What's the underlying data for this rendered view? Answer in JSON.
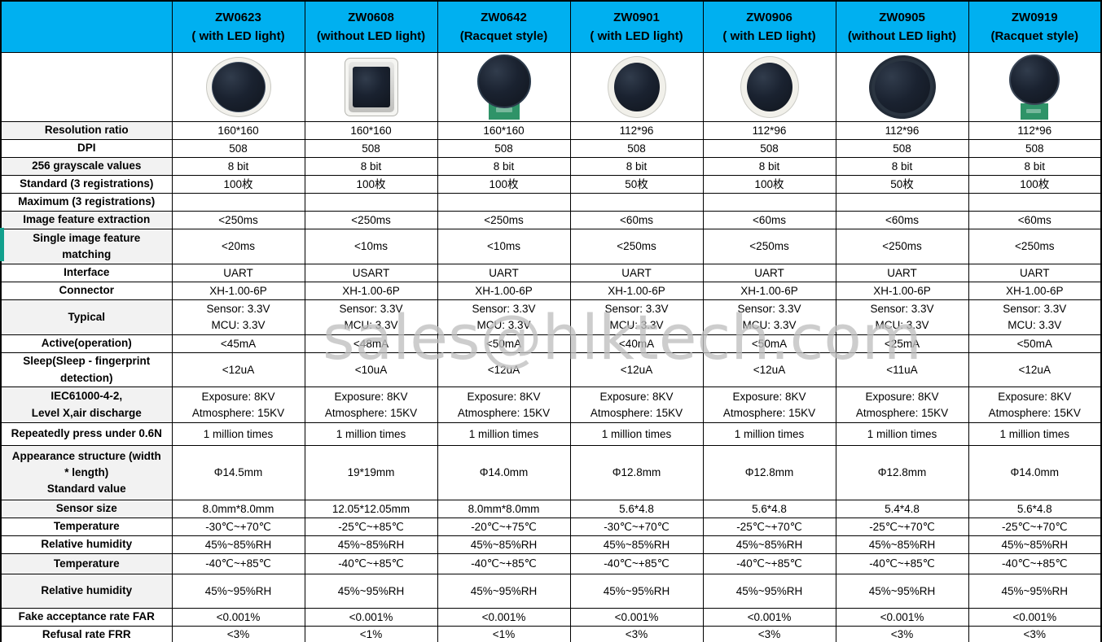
{
  "watermark": "sales@hlktech.com",
  "colors": {
    "header_bg": "#00b0f0",
    "label_shaded_bg": "#f2f2f2",
    "border": "#000000",
    "pcb_green": "#2f9368",
    "sensor_dark": "#10151d"
  },
  "products": [
    {
      "model": "ZW0623",
      "variant": "( with LED light)",
      "image": "sensor-oval-white-bezel"
    },
    {
      "model": "ZW0608",
      "variant": "(without LED light)",
      "image": "sensor-square-silver-frame"
    },
    {
      "model": "ZW0642",
      "variant": "(Racquet style)",
      "image": "sensor-racquet-green-pcb"
    },
    {
      "model": "ZW0901",
      "variant": "( with LED light)",
      "image": "sensor-circle-white-bezel"
    },
    {
      "model": "ZW0906",
      "variant": "( with LED light)",
      "image": "sensor-circle-white-bezel"
    },
    {
      "model": "ZW0905",
      "variant": "(without LED light)",
      "image": "sensor-circle-plain"
    },
    {
      "model": "ZW0919",
      "variant": "(Racquet style)",
      "image": "sensor-racquet-small-green-pcb"
    }
  ],
  "rows": [
    {
      "label": "Resolution ratio",
      "shaded": true,
      "values": [
        "160*160",
        "160*160",
        "160*160",
        "112*96",
        "112*96",
        "112*96",
        "112*96"
      ]
    },
    {
      "label": "DPI",
      "shaded": false,
      "values": [
        "508",
        "508",
        "508",
        "508",
        "508",
        "508",
        "508"
      ]
    },
    {
      "label": "256 grayscale values",
      "shaded": true,
      "values": [
        "8 bit",
        "8 bit",
        "8 bit",
        "8 bit",
        "8 bit",
        "8 bit",
        "8 bit"
      ]
    },
    {
      "label": "Standard (3 registrations)",
      "shaded": false,
      "values": [
        "100枚",
        "100枚",
        "100枚",
        "50枚",
        "100枚",
        "50枚",
        "100枚"
      ]
    },
    {
      "label": "Maximum (3 registrations)",
      "shaded": false,
      "values": [
        "",
        "",
        "",
        "",
        "",
        "",
        ""
      ]
    },
    {
      "label": "Image feature extraction",
      "shaded": true,
      "values": [
        "<250ms",
        "<250ms",
        "<250ms",
        "<60ms",
        "<60ms",
        "<60ms",
        "<60ms"
      ]
    },
    {
      "label": "Single image feature\nmatching",
      "shaded": true,
      "values": [
        "<20ms",
        "<10ms",
        "<10ms",
        "<250ms",
        "<250ms",
        "<250ms",
        "<250ms"
      ]
    },
    {
      "label": "Interface",
      "shaded": false,
      "values": [
        "UART",
        "USART",
        "UART",
        "UART",
        "UART",
        "UART",
        "UART"
      ]
    },
    {
      "label": "Connector",
      "shaded": false,
      "values": [
        "XH-1.00-6P",
        "XH-1.00-6P",
        "XH-1.00-6P",
        "XH-1.00-6P",
        "XH-1.00-6P",
        "XH-1.00-6P",
        "XH-1.00-6P"
      ]
    },
    {
      "label": "Typical",
      "shaded": true,
      "values": [
        "Sensor: 3.3V\nMCU: 3.3V",
        "Sensor: 3.3V\nMCU: 3.3V",
        "Sensor: 3.3V\nMCU: 3.3V",
        "Sensor: 3.3V\nMCU: 3.3V",
        "Sensor: 3.3V\nMCU: 3.3V",
        "Sensor: 3.3V\nMCU: 3.3V",
        "Sensor: 3.3V\nMCU: 3.3V"
      ]
    },
    {
      "label": "Active(operation)",
      "shaded": false,
      "values": [
        "<45mA",
        "<48mA",
        "<50mA",
        "<40mA",
        "<50mA",
        "<25mA",
        "<50mA"
      ]
    },
    {
      "label": "Sleep(Sleep - fingerprint\ndetection)",
      "shaded": false,
      "values": [
        "<12uA",
        "<10uA",
        "<12uA",
        "<12uA",
        "<12uA",
        "<11uA",
        "<12uA"
      ]
    },
    {
      "label": "IEC61000-4-2,\nLevel X,air discharge",
      "shaded": true,
      "values": [
        "Exposure: 8KV\nAtmosphere: 15KV",
        "Exposure: 8KV\nAtmosphere: 15KV",
        "Exposure: 8KV\nAtmosphere: 15KV",
        "Exposure: 8KV\nAtmosphere: 15KV",
        "Exposure: 8KV\nAtmosphere: 15KV",
        "Exposure: 8KV\nAtmosphere: 15KV",
        "Exposure: 8KV\nAtmosphere: 15KV"
      ]
    },
    {
      "label": "Repeatedly press under 0.6N",
      "shaded": false,
      "values": [
        "1 million times",
        "1 million times",
        "1 million times",
        "1 million times",
        "1 million times",
        "1 million times",
        "1 million times"
      ]
    },
    {
      "label": "Appearance structure (width\n* length)\nStandard value",
      "shaded": true,
      "values": [
        "Φ14.5mm",
        "19*19mm",
        "Φ14.0mm",
        "Φ12.8mm",
        "Φ12.8mm",
        "Φ12.8mm",
        "Φ14.0mm"
      ]
    },
    {
      "label": "Sensor size",
      "shaded": true,
      "values": [
        "8.0mm*8.0mm",
        "12.05*12.05mm",
        "8.0mm*8.0mm",
        "5.6*4.8",
        "5.6*4.8",
        "5.4*4.8",
        "5.6*4.8"
      ]
    },
    {
      "label": "Temperature",
      "shaded": false,
      "values": [
        "-30℃~+70℃",
        "-25℃~+85℃",
        "-20℃~+75℃",
        "-30℃~+70℃",
        "-25℃~+70℃",
        "-25℃~+70℃",
        "-25℃~+70℃"
      ]
    },
    {
      "label": "Relative humidity",
      "shaded": false,
      "values": [
        "45%~85%RH",
        "45%~85%RH",
        "45%~85%RH",
        "45%~85%RH",
        "45%~85%RH",
        "45%~85%RH",
        "45%~85%RH"
      ]
    },
    {
      "label": "Temperature",
      "shaded": true,
      "values": [
        "-40℃~+85℃",
        "-40℃~+85℃",
        "-40℃~+85℃",
        "-40℃~+85℃",
        "-40℃~+85℃",
        "-40℃~+85℃",
        "-40℃~+85℃"
      ]
    },
    {
      "label": "Relative humidity",
      "shaded": true,
      "values": [
        "45%~95%RH",
        "45%~95%RH",
        "45%~95%RH",
        "45%~95%RH",
        "45%~95%RH",
        "45%~95%RH",
        "45%~95%RH"
      ]
    },
    {
      "label": "Fake acceptance rate FAR",
      "shaded": false,
      "values": [
        "<0.001%",
        "<0.001%",
        "<0.001%",
        "<0.001%",
        "<0.001%",
        "<0.001%",
        "<0.001%"
      ]
    },
    {
      "label": "Refusal rate FRR",
      "shaded": false,
      "values": [
        "<3%",
        "<1%",
        "<1%",
        "<3%",
        "<3%",
        "<3%",
        "<3%"
      ]
    }
  ]
}
